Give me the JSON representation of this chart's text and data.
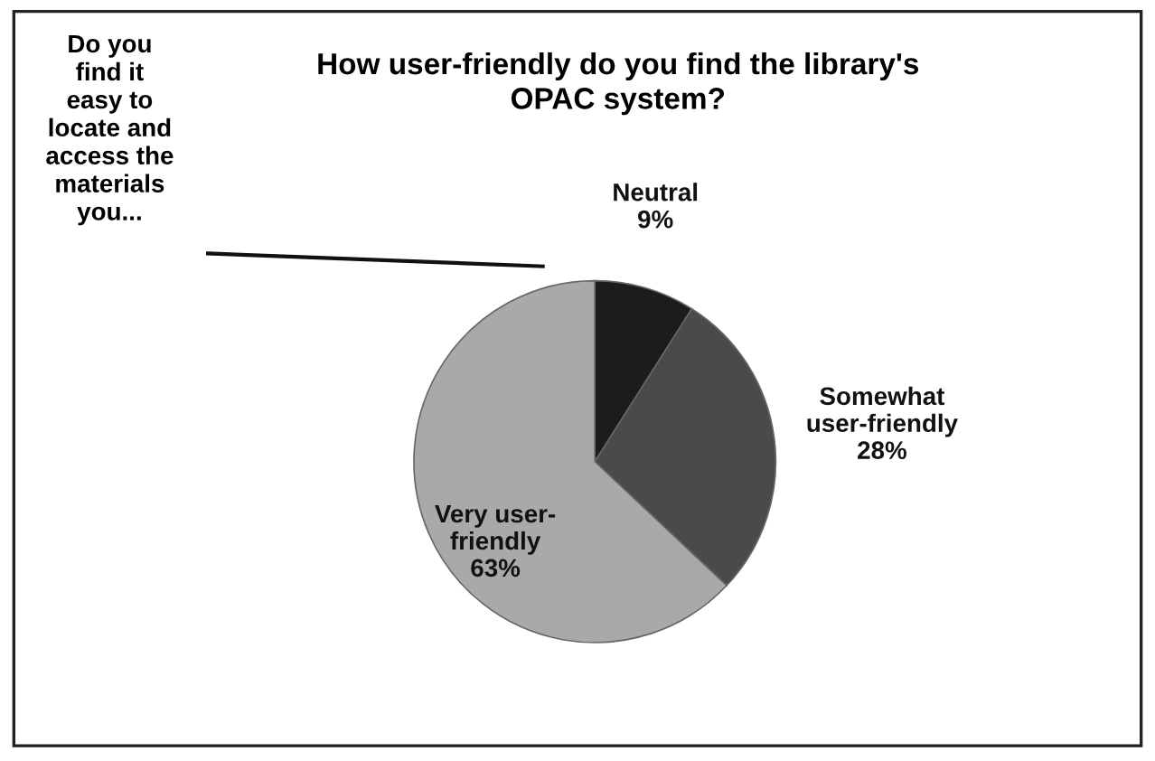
{
  "chart_data": {
    "type": "pie",
    "title": "How user-friendly do you find the library's\nOPAC system?",
    "categories": [
      "Neutral",
      "Somewhat\nuser-friendly",
      "Very user-\nfriendly"
    ],
    "values": [
      9,
      28,
      63
    ],
    "value_labels": [
      "9%",
      "28%",
      "63%"
    ],
    "colors": [
      "#1c1c1c",
      "#4a4a4a",
      "#a9a9a9"
    ],
    "annotations": [
      "Do you\nfind it\neasy to\nlocate and\naccess the\nmaterials\nyou..."
    ],
    "legend": false
  }
}
